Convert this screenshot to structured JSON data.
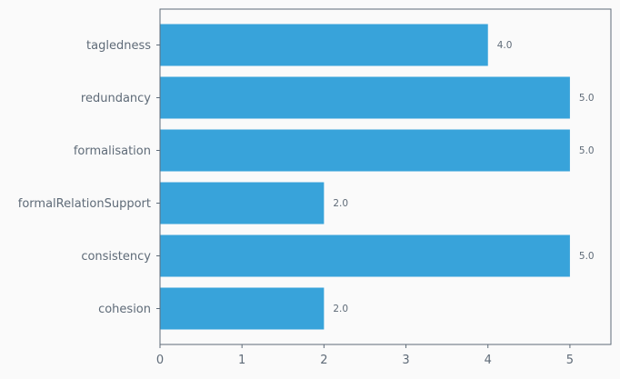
{
  "chart_data": {
    "type": "bar",
    "orientation": "horizontal",
    "categories": [
      "tagledness",
      "redundancy",
      "formalisation",
      "formalRelationSupport",
      "consistency",
      "cohesion"
    ],
    "values": [
      4.0,
      5.0,
      5.0,
      2.0,
      5.0,
      2.0
    ],
    "data_labels": [
      "4.0",
      "5.0",
      "5.0",
      "2.0",
      "5.0",
      "2.0"
    ],
    "x_ticks": [
      "0",
      "1",
      "2",
      "3",
      "4",
      "5"
    ],
    "xlim": [
      0,
      5.5
    ],
    "grid": false,
    "legend": "none",
    "title": "",
    "xlabel": "",
    "ylabel": "",
    "colors": {
      "bar": "#38a3da",
      "axis": "#5f6b78",
      "tick_text": "#5f6b78",
      "label_text": "#5f6b78",
      "plot_bg": "#fafafa"
    }
  }
}
